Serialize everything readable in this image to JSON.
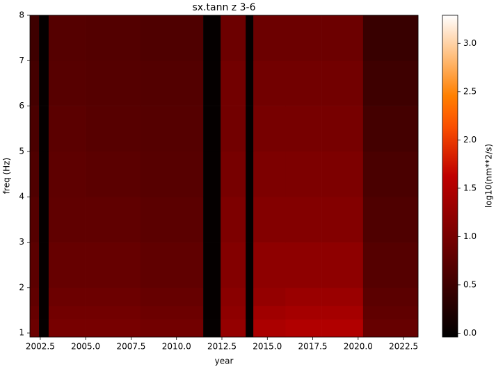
{
  "chart_data": {
    "type": "heatmap",
    "title": "sx.tann z 3-6",
    "xlabel": "year",
    "ylabel": "freq (Hz)",
    "colorbar_label": "log10(nm**2/s)",
    "colormap": "gist_heat",
    "xlim": [
      2001.93,
      2023.3
    ],
    "ylim": [
      0.91,
      8
    ],
    "clim": [
      -0.04,
      3.29
    ],
    "xticks": [
      2002.5,
      {
        "value": 2005,
        "label": "2005.0"
      },
      2007.5,
      {
        "value": 2010,
        "label": "2010.0"
      },
      2012.5,
      {
        "value": 2015,
        "label": "2015.0"
      },
      2017.5,
      {
        "value": 2020,
        "label": "2020.0"
      },
      2022.5
    ],
    "yticks": [
      1,
      2,
      3,
      4,
      5,
      6,
      7,
      8
    ],
    "cticks": [
      {
        "value": 0,
        "label": "0.0"
      },
      0.5,
      {
        "value": 1,
        "label": "1.0"
      },
      1.5,
      {
        "value": 2,
        "label": "2.0"
      },
      2.5,
      {
        "value": 3,
        "label": "3.0"
      }
    ],
    "xbins": [
      2001.93,
      2002.43,
      2002.96,
      2005,
      2008,
      2011.47,
      2012.43,
      2013.81,
      2014.23,
      2016,
      2018,
      2020.27,
      2023.3
    ],
    "ybins": [
      0.91,
      1.3,
      1.6,
      2,
      3,
      4,
      5,
      6,
      7,
      8
    ],
    "values": [
      [
        0.9,
        0,
        1.0,
        1.0,
        0.95,
        0,
        1.25,
        0,
        1.45,
        1.5,
        1.5,
        0.85
      ],
      [
        0.85,
        0,
        0.95,
        0.95,
        0.9,
        0,
        1.2,
        0,
        1.35,
        1.4,
        1.4,
        0.8
      ],
      [
        0.8,
        0,
        0.9,
        0.9,
        0.85,
        0,
        1.15,
        0,
        1.25,
        1.3,
        1.3,
        0.75
      ],
      [
        0.75,
        0,
        0.85,
        0.85,
        0.8,
        0,
        1.1,
        0,
        1.2,
        1.2,
        1.2,
        0.7
      ],
      [
        0.7,
        0,
        0.8,
        0.8,
        0.75,
        0,
        1.05,
        0,
        1.1,
        1.1,
        1.1,
        0.65
      ],
      [
        0.65,
        0,
        0.78,
        0.75,
        0.72,
        0,
        1.0,
        0,
        1.05,
        1.05,
        1.05,
        0.6
      ],
      [
        0.6,
        0,
        0.75,
        0.72,
        0.7,
        0,
        0.95,
        0,
        1.0,
        1.0,
        1.0,
        0.55
      ],
      [
        0.55,
        0,
        0.72,
        0.7,
        0.68,
        0,
        0.95,
        0,
        0.95,
        0.95,
        0.95,
        0.5
      ],
      [
        0.5,
        0,
        0.7,
        0.68,
        0.65,
        0,
        0.9,
        0,
        0.9,
        0.9,
        0.9,
        0.45
      ]
    ]
  }
}
